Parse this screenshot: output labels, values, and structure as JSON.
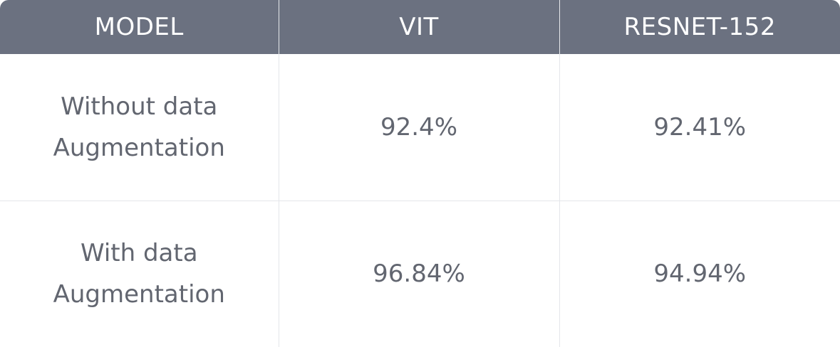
{
  "table": {
    "headers": [
      "MODEL",
      "VIT",
      "RESNET-152"
    ],
    "rows": [
      {
        "label": "Without data Augmentation",
        "vit": "92.4%",
        "resnet": "92.41%"
      },
      {
        "label": "With data Augmentation",
        "vit": "96.84%",
        "resnet": "94.94%"
      }
    ]
  },
  "colors": {
    "header_bg": "#6b7180",
    "header_text": "#ffffff",
    "cell_text": "#626670",
    "grid": "#e4e6ea"
  }
}
